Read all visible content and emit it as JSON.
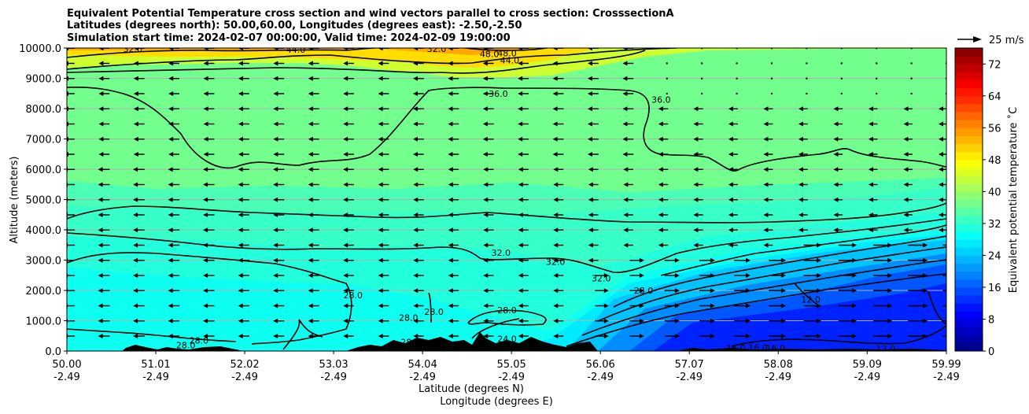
{
  "chart_data": {
    "type": "heatmap",
    "title_lines": [
      "Equivalent Potential Temperature cross section and wind vectors parallel to cross section: CrosssectionA",
      "Latitudes (degrees north): 50.00,60.00, Longitudes (degrees east): -2.50,-2.50",
      "Simulation start time: 2024-02-07 00:00:00, Valid time: 2024-02-09 19:00:00"
    ],
    "xlabel": "Latitude (degrees N)",
    "xlabel2": "Longitude (degrees E)",
    "ylabel": "Altitude (meters)",
    "x_ticks": [
      {
        "lat": "50.00",
        "lon": "-2.49",
        "v": 50.0
      },
      {
        "lat": "51.01",
        "lon": "-2.49",
        "v": 51.01
      },
      {
        "lat": "52.02",
        "lon": "-2.49",
        "v": 52.02
      },
      {
        "lat": "53.03",
        "lon": "-2.49",
        "v": 53.03
      },
      {
        "lat": "54.04",
        "lon": "-2.49",
        "v": 54.04
      },
      {
        "lat": "55.05",
        "lon": "-2.49",
        "v": 55.05
      },
      {
        "lat": "56.06",
        "lon": "-2.49",
        "v": 56.06
      },
      {
        "lat": "57.07",
        "lon": "-2.49",
        "v": 57.07
      },
      {
        "lat": "58.08",
        "lon": "-2.49",
        "v": 58.08
      },
      {
        "lat": "59.09",
        "lon": "-2.49",
        "v": 59.09
      },
      {
        "lat": "59.99",
        "lon": "-2.49",
        "v": 59.99
      }
    ],
    "y_ticks": [
      {
        "label": "0.0",
        "v": 0
      },
      {
        "label": "1000.0",
        "v": 1000
      },
      {
        "label": "2000.0",
        "v": 2000
      },
      {
        "label": "3000.0",
        "v": 3000
      },
      {
        "label": "4000.0",
        "v": 4000
      },
      {
        "label": "5000.0",
        "v": 5000
      },
      {
        "label": "6000.0",
        "v": 6000
      },
      {
        "label": "7000.0",
        "v": 7000
      },
      {
        "label": "8000.0",
        "v": 8000
      },
      {
        "label": "9000.0",
        "v": 9000
      },
      {
        "label": "10000.0",
        "v": 10000
      }
    ],
    "xlim": [
      50.0,
      59.99
    ],
    "ylim": [
      0,
      10000
    ],
    "grid": "horizontal",
    "colorbar": {
      "label": "Equivalent potential temperature ˚C",
      "range": [
        0,
        76
      ],
      "tick_labels": [
        "0",
        "8",
        "16",
        "24",
        "32",
        "40",
        "48",
        "56",
        "64",
        "72"
      ],
      "colormap": "jet"
    },
    "quiver_key": {
      "label": "25 m/s"
    },
    "contour_labels": [
      {
        "text": "32.0",
        "x": 50.75,
        "y": 9970
      },
      {
        "text": "44.0",
        "x": 52.6,
        "y": 9950
      },
      {
        "text": "32.0",
        "x": 54.2,
        "y": 9970
      },
      {
        "text": "48.0",
        "x": 54.8,
        "y": 9800
      },
      {
        "text": "48.0",
        "x": 55.0,
        "y": 9830
      },
      {
        "text": "44.0",
        "x": 55.03,
        "y": 9600
      },
      {
        "text": "36.0",
        "x": 54.9,
        "y": 8500
      },
      {
        "text": "36.0",
        "x": 56.75,
        "y": 8300
      },
      {
        "text": "32.0",
        "x": 54.93,
        "y": 3250
      },
      {
        "text": "32.0",
        "x": 55.55,
        "y": 2950
      },
      {
        "text": "32.0",
        "x": 56.07,
        "y": 2400
      },
      {
        "text": "28.0",
        "x": 53.25,
        "y": 1850
      },
      {
        "text": "28.0",
        "x": 54.17,
        "y": 1300
      },
      {
        "text": "28.0",
        "x": 53.88,
        "y": 1100
      },
      {
        "text": "28.0",
        "x": 55.0,
        "y": 1350
      },
      {
        "text": "28.0",
        "x": 56.55,
        "y": 2000
      },
      {
        "text": "12.0",
        "x": 58.45,
        "y": 1700
      },
      {
        "text": "28.0",
        "x": 51.35,
        "y": 200
      },
      {
        "text": "28.0",
        "x": 51.5,
        "y": 350
      },
      {
        "text": "28.0",
        "x": 53.9,
        "y": 300
      },
      {
        "text": "24.0",
        "x": 55.0,
        "y": 400
      },
      {
        "text": "16.0",
        "x": 57.6,
        "y": 100
      },
      {
        "text": "16.0",
        "x": 57.85,
        "y": 120
      },
      {
        "text": "16.0",
        "x": 58.05,
        "y": 100
      },
      {
        "text": "12.0",
        "x": 59.3,
        "y": 80
      }
    ]
  }
}
